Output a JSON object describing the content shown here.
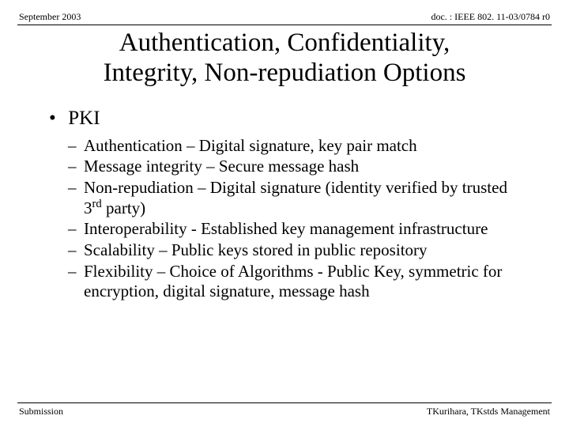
{
  "header": {
    "left": "September 2003",
    "right": "doc. : IEEE 802. 11-03/0784 r0"
  },
  "title": {
    "line1": "Authentication, Confidentiality,",
    "line2": "Integrity, Non-repudiation Options"
  },
  "bullet": {
    "marker": "•",
    "label": "PKI"
  },
  "sub": {
    "dash": "–",
    "items": [
      "Authentication – Digital signature, key pair match",
      "Message integrity – Secure message hash",
      "Non-repudiation – Digital signature (identity verified by trusted 3__SUP_rd__ party)",
      "Interoperability -  Established key management infrastructure",
      "Scalability – Public keys stored in public repository",
      "Flexibility – Choice of Algorithms - Public Key, symmetric for encryption, digital signature, message hash"
    ]
  },
  "footer": {
    "left": "Submission",
    "right": "TKurihara, TKstds Management"
  },
  "style": {
    "background": "#ffffff",
    "text_color": "#000000",
    "rule_color": "#000000",
    "title_fontsize": 33,
    "bullet_fontsize": 25,
    "sub_fontsize": 21,
    "meta_fontsize": 12,
    "font_family": "Times New Roman"
  }
}
